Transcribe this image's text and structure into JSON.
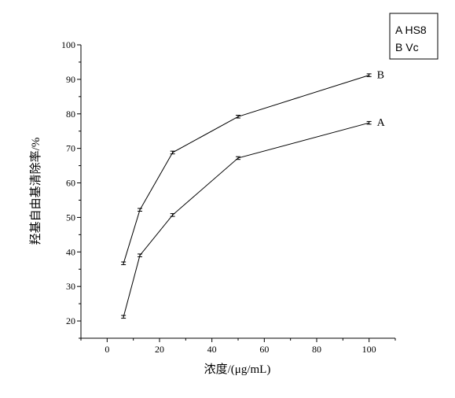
{
  "chart_data": {
    "type": "line",
    "xlabel": "浓度/(μg/mL)",
    "ylabel": "羟基自由基清除率/%",
    "xlim": [
      -10,
      110
    ],
    "ylim": [
      15,
      100
    ],
    "x_ticks": [
      0,
      20,
      40,
      60,
      80,
      100
    ],
    "y_ticks": [
      20,
      30,
      40,
      50,
      60,
      70,
      80,
      90,
      100
    ],
    "x": [
      6.25,
      12.5,
      25,
      50,
      100
    ],
    "series": [
      {
        "name": "A",
        "values": [
          21.2,
          39.0,
          50.7,
          67.2,
          77.4
        ]
      },
      {
        "name": "B",
        "values": [
          36.7,
          52.2,
          68.8,
          79.2,
          91.2
        ]
      }
    ],
    "error_bar": 0.4,
    "legend": {
      "position": "top-right",
      "lines": [
        "A HS8",
        "B Vc"
      ]
    },
    "grid": false
  }
}
